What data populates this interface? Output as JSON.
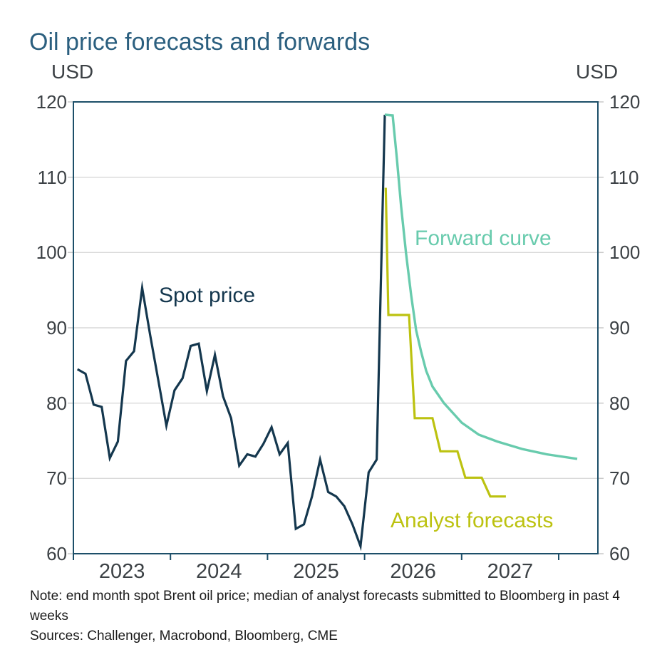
{
  "title": "Oil price forecasts and forwards",
  "axis_units": {
    "left": "USD",
    "right": "USD"
  },
  "note": "Note: end month spot Brent oil price; median of analyst forecasts submitted to Bloomberg in past 4 weeks",
  "sources": "Sources: Challenger, Macrobond, Bloomberg, CME",
  "colors": {
    "title_text": "#2b5f7f",
    "axis_text": "#3c4145",
    "note_text": "#1a1a1a",
    "frame": "#1d4f69",
    "grid": "#d9d9d9",
    "y_tick": "#c9c9c9",
    "spot": "#14374e",
    "forward": "#68cbad",
    "analyst": "#bcc210"
  },
  "chart_data": {
    "type": "line",
    "title": "Oil price forecasts and forwards",
    "ylabel": "USD",
    "ylim": [
      60,
      120
    ],
    "yticks": [
      60,
      70,
      80,
      90,
      100,
      110,
      120
    ],
    "xlim": [
      2023,
      2028.4
    ],
    "x_year_boundary_ticks": [
      2023,
      2024,
      2025,
      2026,
      2027,
      2028
    ],
    "x_year_labels": [
      {
        "text": "2023",
        "t": 2023.5
      },
      {
        "text": "2024",
        "t": 2024.5
      },
      {
        "text": "2025",
        "t": 2025.5
      },
      {
        "text": "2026",
        "t": 2026.5
      },
      {
        "text": "2027",
        "t": 2027.5
      }
    ],
    "grid": "horizontal",
    "legend": "inline-annotations",
    "series": [
      {
        "name": "Spot price",
        "color_key": "spot",
        "label": {
          "text": "Spot price",
          "t": 2023.881,
          "value": 93.5
        },
        "points": [
          [
            2023.0417,
            84.5
          ],
          [
            2023.125,
            83.9
          ],
          [
            2023.2083,
            79.8
          ],
          [
            2023.2917,
            79.5
          ],
          [
            2023.375,
            72.7
          ],
          [
            2023.4583,
            74.9
          ],
          [
            2023.5417,
            85.6
          ],
          [
            2023.625,
            86.9
          ],
          [
            2023.7083,
            95.3
          ],
          [
            2023.7917,
            89.0
          ],
          [
            2023.875,
            83.0
          ],
          [
            2023.9583,
            77.0
          ],
          [
            2024.0417,
            81.7
          ],
          [
            2024.125,
            83.3
          ],
          [
            2024.2083,
            87.6
          ],
          [
            2024.2917,
            87.9
          ],
          [
            2024.375,
            81.6
          ],
          [
            2024.4583,
            86.4
          ],
          [
            2024.5417,
            80.9
          ],
          [
            2024.625,
            78.0
          ],
          [
            2024.7083,
            71.7
          ],
          [
            2024.7917,
            73.2
          ],
          [
            2024.875,
            72.9
          ],
          [
            2024.9583,
            74.6
          ],
          [
            2025.0417,
            76.8
          ],
          [
            2025.125,
            73.2
          ],
          [
            2025.2083,
            74.7
          ],
          [
            2025.2917,
            63.3
          ],
          [
            2025.375,
            63.9
          ],
          [
            2025.4583,
            67.6
          ],
          [
            2025.5417,
            72.5
          ],
          [
            2025.625,
            68.2
          ],
          [
            2025.7083,
            67.6
          ],
          [
            2025.7917,
            66.3
          ],
          [
            2025.875,
            63.9
          ],
          [
            2025.9583,
            61.0
          ],
          [
            2026.0417,
            70.8
          ],
          [
            2026.125,
            72.5
          ],
          [
            2026.2083,
            118.3
          ]
        ]
      },
      {
        "name": "Forward curve",
        "color_key": "forward",
        "label": {
          "text": "Forward curve",
          "t": 2026.517,
          "value": 101.1
        },
        "points": [
          [
            2026.2083,
            118.3
          ],
          [
            2026.289,
            118.2
          ],
          [
            2026.333,
            112.4
          ],
          [
            2026.377,
            106.1
          ],
          [
            2026.428,
            99.8
          ],
          [
            2026.48,
            94.3
          ],
          [
            2026.531,
            89.7
          ],
          [
            2026.583,
            86.8
          ],
          [
            2026.634,
            84.3
          ],
          [
            2026.7,
            82.2
          ],
          [
            2026.818,
            80.0
          ],
          [
            2027.001,
            77.4
          ],
          [
            2027.177,
            75.8
          ],
          [
            2027.368,
            74.9
          ],
          [
            2027.625,
            73.9
          ],
          [
            2027.875,
            73.2
          ],
          [
            2028.191,
            72.6
          ]
        ]
      },
      {
        "name": "Analyst forecasts",
        "color_key": "analyst",
        "label": {
          "text": "Analyst forecasts",
          "t": 2026.267,
          "value": 63.6
        },
        "points": [
          [
            2026.218,
            108.6
          ],
          [
            2026.245,
            91.7
          ],
          [
            2026.458,
            91.7
          ],
          [
            2026.517,
            78.0
          ],
          [
            2026.7,
            78.0
          ],
          [
            2026.781,
            73.6
          ],
          [
            2026.957,
            73.6
          ],
          [
            2027.038,
            70.1
          ],
          [
            2027.207,
            70.1
          ],
          [
            2027.295,
            67.6
          ],
          [
            2027.456,
            67.6
          ]
        ]
      }
    ]
  }
}
